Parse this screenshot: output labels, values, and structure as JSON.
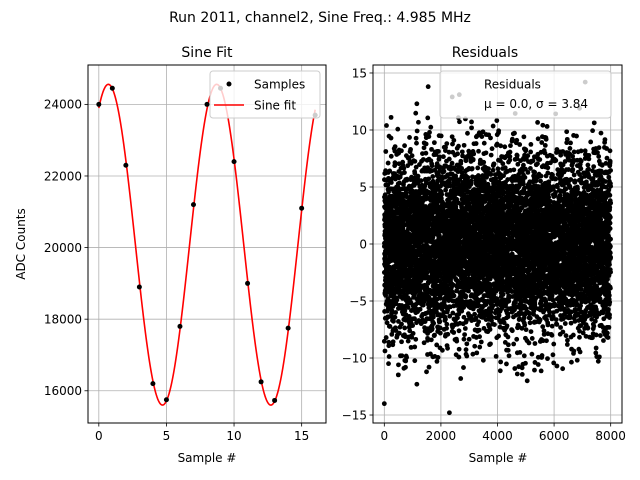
{
  "figure": {
    "suptitle": "Run 2011, channel2, Sine Freq.: 4.985 MHz"
  },
  "chart_data": [
    {
      "type": "line",
      "title": "Sine Fit",
      "xlabel": "Sample #",
      "ylabel": "ADC Counts",
      "xlim": [
        -0.8,
        16.8
      ],
      "ylim": [
        15100,
        25100
      ],
      "xticks": [
        "0",
        "5",
        "10",
        "15"
      ],
      "xtick_values": [
        0,
        5,
        10,
        15
      ],
      "yticks": [
        "16000",
        "18000",
        "20000",
        "22000",
        "24000"
      ],
      "ytick_values": [
        16000,
        18000,
        20000,
        22000,
        24000
      ],
      "grid": true,
      "legend": {
        "placement": "top-right",
        "entries": [
          "Samples",
          "Sine fit"
        ]
      },
      "series": [
        {
          "name": "Samples",
          "kind": "scatter",
          "color": "#000000",
          "x": [
            0,
            1,
            2,
            3,
            4,
            5,
            6,
            7,
            8,
            9,
            10,
            11,
            12,
            13,
            14,
            15,
            16
          ],
          "y": [
            24000,
            24450,
            22300,
            18900,
            16200,
            15750,
            17800,
            21200,
            24000,
            24450,
            22400,
            19000,
            16250,
            15730,
            17750,
            21100,
            23700
          ]
        },
        {
          "name": "Sine fit",
          "kind": "line",
          "color": "#ff0000",
          "model": {
            "offset": 20080,
            "amplitude": 4480,
            "period": 8.012,
            "phase_x": -1.3
          },
          "x_range": [
            0,
            16.0
          ]
        }
      ]
    },
    {
      "type": "scatter",
      "title": "Residuals",
      "xlabel": "Sample #",
      "ylabel": "",
      "xlim": [
        -400,
        8400
      ],
      "ylim": [
        -15.7,
        15.7
      ],
      "xticks": [
        "0",
        "2000",
        "4000",
        "6000",
        "8000"
      ],
      "xtick_values": [
        0,
        2000,
        4000,
        6000,
        8000
      ],
      "yticks": [
        "−15",
        "−10",
        "−5",
        "0",
        "5",
        "10",
        "15"
      ],
      "ytick_values": [
        -15,
        -10,
        -5,
        0,
        5,
        10,
        15
      ],
      "grid": true,
      "color": "#000000",
      "count": 8000,
      "stats": {
        "mu": 0.0,
        "sigma": 3.84
      },
      "legend": {
        "placement": "top-right",
        "line1": "Residuals",
        "line2": "μ = 0.0, σ = 3.84"
      },
      "outliers": [
        {
          "x": 0,
          "y": -14.0
        },
        {
          "x": 2300,
          "y": -14.8
        },
        {
          "x": 1550,
          "y": 13.8
        },
        {
          "x": 2650,
          "y": 13.1
        },
        {
          "x": 7100,
          "y": 14.2
        },
        {
          "x": 1150,
          "y": 12.3
        },
        {
          "x": 1150,
          "y": -12.3
        },
        {
          "x": 2700,
          "y": -11.8
        },
        {
          "x": 4700,
          "y": -11.4
        },
        {
          "x": 5050,
          "y": -12.0
        },
        {
          "x": 500,
          "y": -10.6
        },
        {
          "x": 3500,
          "y": -10.2
        },
        {
          "x": 6100,
          "y": -10.7
        },
        {
          "x": 7600,
          "y": -9.9
        },
        {
          "x": 2400,
          "y": 12.9
        },
        {
          "x": 6900,
          "y": 11.9
        }
      ]
    }
  ]
}
